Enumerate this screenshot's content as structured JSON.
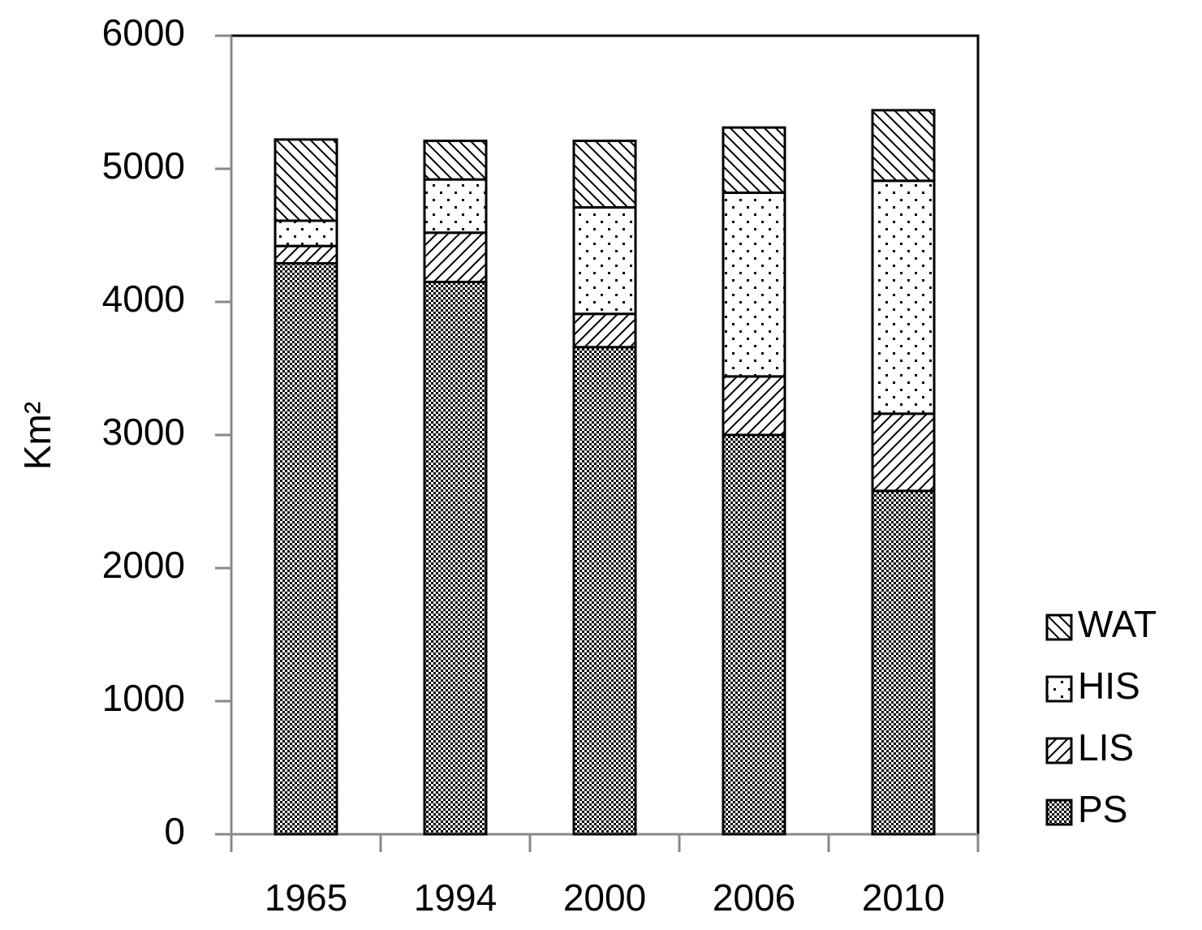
{
  "chart_data": {
    "type": "stacked_bar",
    "y_label": "Km²",
    "categories": [
      "1965",
      "1994",
      "2000",
      "2006",
      "2010"
    ],
    "series": [
      {
        "name": "PS",
        "pattern": "checker",
        "values": [
          4290,
          4150,
          3660,
          3000,
          2580
        ]
      },
      {
        "name": "LIS",
        "pattern": "forward-hatch",
        "values": [
          130,
          370,
          250,
          440,
          580
        ]
      },
      {
        "name": "HIS",
        "pattern": "dots",
        "values": [
          190,
          400,
          800,
          1380,
          1750
        ]
      },
      {
        "name": "WAT",
        "pattern": "back-hatch",
        "values": [
          610,
          290,
          500,
          490,
          530
        ]
      }
    ],
    "ylim": [
      0,
      6000
    ],
    "yticks": [
      0,
      1000,
      2000,
      3000,
      4000,
      5000,
      6000
    ],
    "grid": false,
    "legend": "right"
  }
}
